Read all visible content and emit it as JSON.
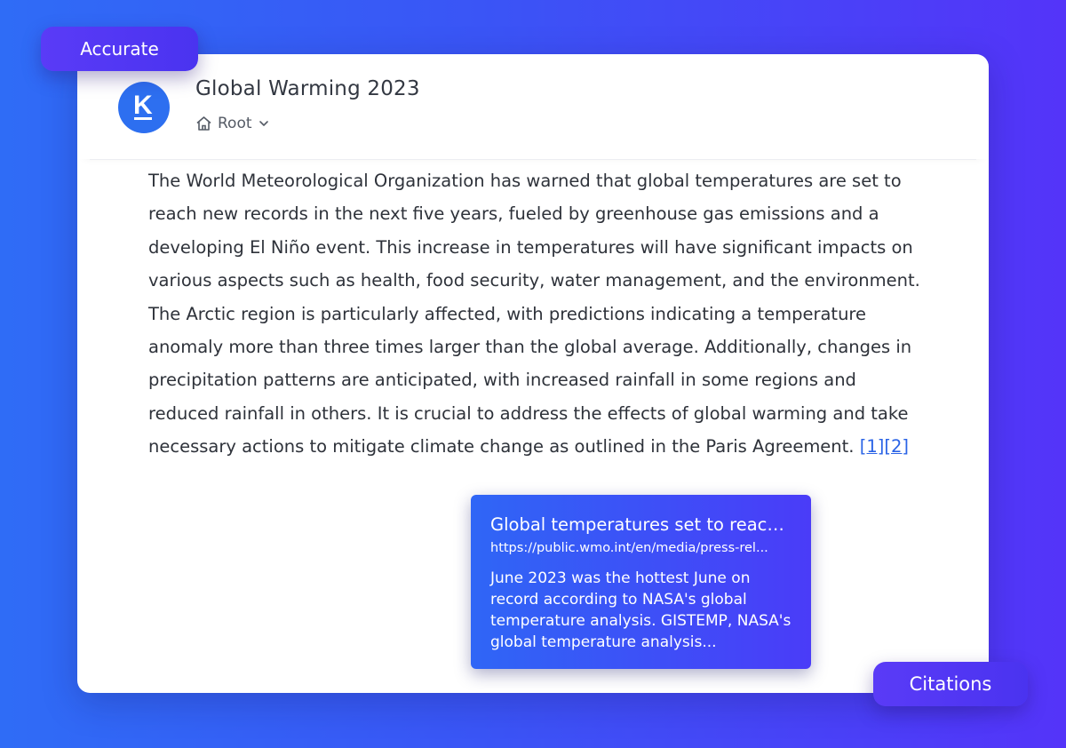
{
  "badges": {
    "accurate": "Accurate",
    "citations": "Citations"
  },
  "document": {
    "title": "Global Warming 2023",
    "breadcrumb_root": "Root",
    "body": "The World Meteorological Organization has warned that global temperatures are set to reach new records in the next five years, fueled by greenhouse gas emissions and a developing El Niño event. This increase in temperatures will have significant impacts on various aspects such as health, food security, water management, and the environment. The Arctic region is particularly affected, with predictions indicating a temperature anomaly more than three times larger than the global average. Additionally, changes in precipitation patterns are anticipated, with increased rainfall in some regions and reduced rainfall in others. It is crucial to address the effects of global warming and take necessary actions to mitigate climate change as outlined in the Paris Agreement.",
    "citation_links": "[1][2]"
  },
  "citation_popup": {
    "title": "Global temperatures set to reach...",
    "url": "https://public.wmo.int/en/media/press-rel...",
    "snippet": "June 2023 was the hottest June on record according to NASA's global temperature analysis. GISTEMP, NASA's global temperature analysis..."
  },
  "colors": {
    "background_start": "#2f6cf6",
    "background_end": "#5434f9",
    "avatar": "#2d6ff0",
    "link": "#2a63e6",
    "badge": "#5a3bf7"
  },
  "icons": {
    "avatar": "k-logo-icon",
    "breadcrumb_home": "home-icon",
    "breadcrumb_toggle": "chevron-down-icon"
  }
}
